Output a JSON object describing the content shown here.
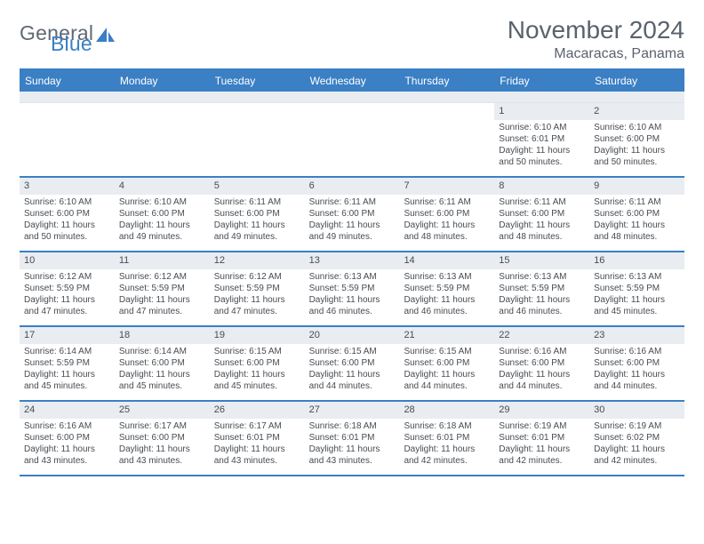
{
  "logo": {
    "text_general": "General",
    "text_blue": "Blue"
  },
  "title": "November 2024",
  "location": "Macaracas, Panama",
  "colors": {
    "header_blue": "#3b7fc4",
    "shade_gray": "#e9edf2",
    "text_gray": "#5a626d",
    "body_text": "#474c52",
    "background": "#ffffff"
  },
  "typography": {
    "title_fontsize": 28,
    "location_fontsize": 16,
    "weekday_fontsize": 12,
    "daynum_fontsize": 11,
    "body_fontsize": 10
  },
  "weekdays": [
    "Sunday",
    "Monday",
    "Tuesday",
    "Wednesday",
    "Thursday",
    "Friday",
    "Saturday"
  ],
  "weeks": [
    [
      {
        "day": "",
        "lines": []
      },
      {
        "day": "",
        "lines": []
      },
      {
        "day": "",
        "lines": []
      },
      {
        "day": "",
        "lines": []
      },
      {
        "day": "",
        "lines": []
      },
      {
        "day": "1",
        "lines": [
          "Sunrise: 6:10 AM",
          "Sunset: 6:01 PM",
          "Daylight: 11 hours",
          "and 50 minutes."
        ]
      },
      {
        "day": "2",
        "lines": [
          "Sunrise: 6:10 AM",
          "Sunset: 6:00 PM",
          "Daylight: 11 hours",
          "and 50 minutes."
        ]
      }
    ],
    [
      {
        "day": "3",
        "lines": [
          "Sunrise: 6:10 AM",
          "Sunset: 6:00 PM",
          "Daylight: 11 hours",
          "and 50 minutes."
        ]
      },
      {
        "day": "4",
        "lines": [
          "Sunrise: 6:10 AM",
          "Sunset: 6:00 PM",
          "Daylight: 11 hours",
          "and 49 minutes."
        ]
      },
      {
        "day": "5",
        "lines": [
          "Sunrise: 6:11 AM",
          "Sunset: 6:00 PM",
          "Daylight: 11 hours",
          "and 49 minutes."
        ]
      },
      {
        "day": "6",
        "lines": [
          "Sunrise: 6:11 AM",
          "Sunset: 6:00 PM",
          "Daylight: 11 hours",
          "and 49 minutes."
        ]
      },
      {
        "day": "7",
        "lines": [
          "Sunrise: 6:11 AM",
          "Sunset: 6:00 PM",
          "Daylight: 11 hours",
          "and 48 minutes."
        ]
      },
      {
        "day": "8",
        "lines": [
          "Sunrise: 6:11 AM",
          "Sunset: 6:00 PM",
          "Daylight: 11 hours",
          "and 48 minutes."
        ]
      },
      {
        "day": "9",
        "lines": [
          "Sunrise: 6:11 AM",
          "Sunset: 6:00 PM",
          "Daylight: 11 hours",
          "and 48 minutes."
        ]
      }
    ],
    [
      {
        "day": "10",
        "lines": [
          "Sunrise: 6:12 AM",
          "Sunset: 5:59 PM",
          "Daylight: 11 hours",
          "and 47 minutes."
        ]
      },
      {
        "day": "11",
        "lines": [
          "Sunrise: 6:12 AM",
          "Sunset: 5:59 PM",
          "Daylight: 11 hours",
          "and 47 minutes."
        ]
      },
      {
        "day": "12",
        "lines": [
          "Sunrise: 6:12 AM",
          "Sunset: 5:59 PM",
          "Daylight: 11 hours",
          "and 47 minutes."
        ]
      },
      {
        "day": "13",
        "lines": [
          "Sunrise: 6:13 AM",
          "Sunset: 5:59 PM",
          "Daylight: 11 hours",
          "and 46 minutes."
        ]
      },
      {
        "day": "14",
        "lines": [
          "Sunrise: 6:13 AM",
          "Sunset: 5:59 PM",
          "Daylight: 11 hours",
          "and 46 minutes."
        ]
      },
      {
        "day": "15",
        "lines": [
          "Sunrise: 6:13 AM",
          "Sunset: 5:59 PM",
          "Daylight: 11 hours",
          "and 46 minutes."
        ]
      },
      {
        "day": "16",
        "lines": [
          "Sunrise: 6:13 AM",
          "Sunset: 5:59 PM",
          "Daylight: 11 hours",
          "and 45 minutes."
        ]
      }
    ],
    [
      {
        "day": "17",
        "lines": [
          "Sunrise: 6:14 AM",
          "Sunset: 5:59 PM",
          "Daylight: 11 hours",
          "and 45 minutes."
        ]
      },
      {
        "day": "18",
        "lines": [
          "Sunrise: 6:14 AM",
          "Sunset: 6:00 PM",
          "Daylight: 11 hours",
          "and 45 minutes."
        ]
      },
      {
        "day": "19",
        "lines": [
          "Sunrise: 6:15 AM",
          "Sunset: 6:00 PM",
          "Daylight: 11 hours",
          "and 45 minutes."
        ]
      },
      {
        "day": "20",
        "lines": [
          "Sunrise: 6:15 AM",
          "Sunset: 6:00 PM",
          "Daylight: 11 hours",
          "and 44 minutes."
        ]
      },
      {
        "day": "21",
        "lines": [
          "Sunrise: 6:15 AM",
          "Sunset: 6:00 PM",
          "Daylight: 11 hours",
          "and 44 minutes."
        ]
      },
      {
        "day": "22",
        "lines": [
          "Sunrise: 6:16 AM",
          "Sunset: 6:00 PM",
          "Daylight: 11 hours",
          "and 44 minutes."
        ]
      },
      {
        "day": "23",
        "lines": [
          "Sunrise: 6:16 AM",
          "Sunset: 6:00 PM",
          "Daylight: 11 hours",
          "and 44 minutes."
        ]
      }
    ],
    [
      {
        "day": "24",
        "lines": [
          "Sunrise: 6:16 AM",
          "Sunset: 6:00 PM",
          "Daylight: 11 hours",
          "and 43 minutes."
        ]
      },
      {
        "day": "25",
        "lines": [
          "Sunrise: 6:17 AM",
          "Sunset: 6:00 PM",
          "Daylight: 11 hours",
          "and 43 minutes."
        ]
      },
      {
        "day": "26",
        "lines": [
          "Sunrise: 6:17 AM",
          "Sunset: 6:01 PM",
          "Daylight: 11 hours",
          "and 43 minutes."
        ]
      },
      {
        "day": "27",
        "lines": [
          "Sunrise: 6:18 AM",
          "Sunset: 6:01 PM",
          "Daylight: 11 hours",
          "and 43 minutes."
        ]
      },
      {
        "day": "28",
        "lines": [
          "Sunrise: 6:18 AM",
          "Sunset: 6:01 PM",
          "Daylight: 11 hours",
          "and 42 minutes."
        ]
      },
      {
        "day": "29",
        "lines": [
          "Sunrise: 6:19 AM",
          "Sunset: 6:01 PM",
          "Daylight: 11 hours",
          "and 42 minutes."
        ]
      },
      {
        "day": "30",
        "lines": [
          "Sunrise: 6:19 AM",
          "Sunset: 6:02 PM",
          "Daylight: 11 hours",
          "and 42 minutes."
        ]
      }
    ]
  ]
}
